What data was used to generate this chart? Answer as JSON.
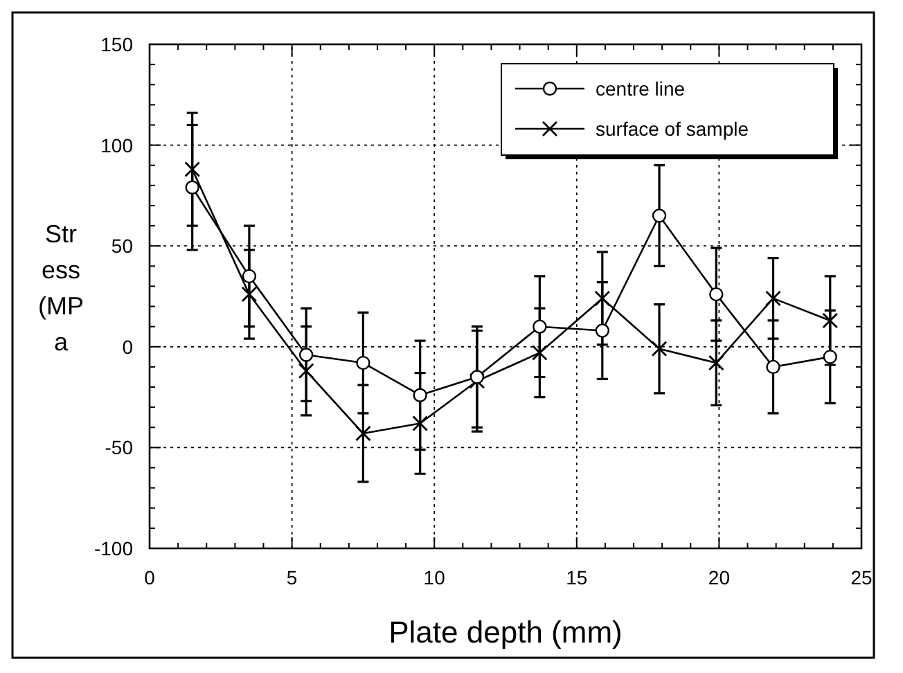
{
  "chart_data": {
    "type": "line",
    "xlabel": "Plate depth (mm)",
    "ylabel": "Stress (MPa",
    "x": [
      1.5,
      3.5,
      5.5,
      7.5,
      9.5,
      11.5,
      13.7,
      15.9,
      17.9,
      19.9,
      21.9,
      23.9
    ],
    "series": [
      {
        "name": "centre line",
        "color": "#000000",
        "marker": "circle",
        "values": [
          79,
          35,
          -4,
          -8,
          -24,
          -15,
          10,
          8,
          65,
          26,
          -10,
          -5
        ],
        "errors": [
          31,
          25,
          23,
          25,
          27,
          25,
          25,
          24,
          25,
          23,
          23,
          23
        ]
      },
      {
        "name": "surface of sample",
        "color": "#000000",
        "marker": "cross",
        "values": [
          88,
          26,
          -12,
          -43,
          -38,
          -17,
          -3,
          24,
          -1,
          -8,
          24,
          13
        ],
        "errors": [
          28,
          22,
          22,
          24,
          25,
          25,
          22,
          23,
          22,
          21,
          20,
          22
        ]
      }
    ],
    "xlim": [
      0,
      25
    ],
    "xticks": [
      0,
      5,
      10,
      15,
      20,
      25
    ],
    "ylim": [
      -100,
      150
    ],
    "yticks": [
      -100,
      -50,
      0,
      50,
      100,
      150
    ],
    "grid": true,
    "legend": "top right",
    "line_style": "solid"
  }
}
